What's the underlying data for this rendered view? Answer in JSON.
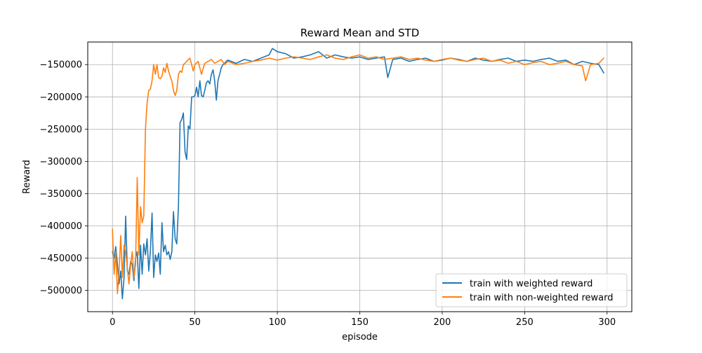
{
  "chart_data": {
    "type": "line",
    "title": "Reward Mean and STD",
    "xlabel": "episode",
    "ylabel": "Reward",
    "xlim": [
      -15,
      315
    ],
    "ylim": [
      -533000,
      -115000
    ],
    "xticks": [
      0,
      50,
      100,
      150,
      200,
      250,
      300
    ],
    "xtick_labels": [
      "0",
      "50",
      "100",
      "150",
      "200",
      "250",
      "300"
    ],
    "yticks": [
      -500000,
      -450000,
      -400000,
      -350000,
      -300000,
      -250000,
      -200000,
      -150000
    ],
    "ytick_labels": [
      "−500000",
      "−450000",
      "−400000",
      "−350000",
      "−300000",
      "−250000",
      "−200000",
      "−150000"
    ],
    "grid": true,
    "legend_position": "lower-right",
    "series": [
      {
        "name": "train with weighted reward",
        "color": "#1f77b4",
        "x": [
          0,
          1,
          2,
          3,
          4,
          5,
          6,
          7,
          8,
          9,
          10,
          11,
          12,
          13,
          14,
          15,
          16,
          17,
          18,
          19,
          20,
          21,
          22,
          23,
          24,
          25,
          26,
          27,
          28,
          29,
          30,
          31,
          32,
          33,
          34,
          35,
          36,
          37,
          38,
          39,
          40,
          41,
          42,
          43,
          44,
          45,
          46,
          47,
          48,
          49,
          50,
          51,
          52,
          53,
          54,
          55,
          56,
          57,
          58,
          59,
          60,
          61,
          62,
          63,
          64,
          65,
          66,
          67,
          68,
          69,
          70,
          75,
          80,
          85,
          90,
          95,
          97,
          100,
          105,
          110,
          115,
          120,
          125,
          130,
          135,
          140,
          145,
          150,
          155,
          160,
          165,
          167,
          170,
          175,
          180,
          185,
          190,
          195,
          200,
          205,
          210,
          215,
          220,
          225,
          230,
          235,
          240,
          245,
          250,
          255,
          260,
          265,
          270,
          275,
          280,
          285,
          290,
          295,
          298
        ],
        "values": [
          -440000,
          -450000,
          -432000,
          -460000,
          -490000,
          -470000,
          -513000,
          -480000,
          -385000,
          -470000,
          -475000,
          -455000,
          -460000,
          -485000,
          -450000,
          -440000,
          -497000,
          -430000,
          -475000,
          -428000,
          -445000,
          -420000,
          -470000,
          -440000,
          -380000,
          -480000,
          -445000,
          -455000,
          -442000,
          -475000,
          -395000,
          -440000,
          -430000,
          -445000,
          -440000,
          -452000,
          -440000,
          -378000,
          -420000,
          -428000,
          -370000,
          -240000,
          -235000,
          -225000,
          -285000,
          -297000,
          -245000,
          -250000,
          -200000,
          -200000,
          -198000,
          -185000,
          -200000,
          -175000,
          -198000,
          -200000,
          -190000,
          -178000,
          -175000,
          -180000,
          -165000,
          -158000,
          -175000,
          -205000,
          -175000,
          -165000,
          -155000,
          -150000,
          -148000,
          -145000,
          -143000,
          -148000,
          -142000,
          -145000,
          -140000,
          -135000,
          -125000,
          -130000,
          -133000,
          -140000,
          -138000,
          -135000,
          -130000,
          -140000,
          -135000,
          -138000,
          -140000,
          -138000,
          -142000,
          -140000,
          -138000,
          -170000,
          -142000,
          -140000,
          -145000,
          -142000,
          -140000,
          -145000,
          -143000,
          -140000,
          -142000,
          -145000,
          -140000,
          -143000,
          -145000,
          -142000,
          -140000,
          -145000,
          -143000,
          -145000,
          -142000,
          -140000,
          -145000,
          -143000,
          -150000,
          -145000,
          -148000,
          -150000,
          -163000
        ]
      },
      {
        "name": "train with non-weighted reward",
        "color": "#ff7f0e",
        "x": [
          0,
          1,
          2,
          3,
          4,
          5,
          6,
          7,
          8,
          9,
          10,
          11,
          12,
          13,
          14,
          15,
          16,
          17,
          18,
          19,
          20,
          21,
          22,
          23,
          24,
          25,
          26,
          27,
          28,
          29,
          30,
          31,
          32,
          33,
          34,
          35,
          36,
          37,
          38,
          39,
          40,
          41,
          42,
          43,
          44,
          45,
          46,
          47,
          48,
          49,
          50,
          52,
          54,
          56,
          58,
          60,
          62,
          64,
          66,
          68,
          70,
          75,
          80,
          85,
          90,
          95,
          100,
          105,
          110,
          115,
          120,
          125,
          130,
          135,
          140,
          145,
          150,
          155,
          160,
          165,
          170,
          175,
          180,
          185,
          190,
          195,
          200,
          205,
          210,
          215,
          220,
          225,
          230,
          235,
          240,
          245,
          250,
          255,
          260,
          265,
          270,
          275,
          280,
          285,
          287,
          290,
          295,
          298
        ],
        "values": [
          -405000,
          -475000,
          -440000,
          -505000,
          -470000,
          -415000,
          -480000,
          -430000,
          -440000,
          -465000,
          -490000,
          -460000,
          -440000,
          -480000,
          -460000,
          -325000,
          -445000,
          -370000,
          -395000,
          -385000,
          -250000,
          -210000,
          -190000,
          -188000,
          -175000,
          -150000,
          -165000,
          -150000,
          -170000,
          -172000,
          -168000,
          -155000,
          -162000,
          -148000,
          -160000,
          -168000,
          -175000,
          -190000,
          -198000,
          -190000,
          -165000,
          -160000,
          -162000,
          -150000,
          -148000,
          -145000,
          -142000,
          -140000,
          -150000,
          -160000,
          -150000,
          -145000,
          -165000,
          -148000,
          -145000,
          -142000,
          -148000,
          -145000,
          -142000,
          -150000,
          -145000,
          -150000,
          -148000,
          -145000,
          -143000,
          -140000,
          -143000,
          -140000,
          -138000,
          -140000,
          -142000,
          -138000,
          -135000,
          -140000,
          -142000,
          -138000,
          -135000,
          -140000,
          -138000,
          -142000,
          -140000,
          -138000,
          -142000,
          -140000,
          -143000,
          -145000,
          -142000,
          -140000,
          -143000,
          -145000,
          -142000,
          -140000,
          -145000,
          -143000,
          -148000,
          -145000,
          -150000,
          -147000,
          -145000,
          -150000,
          -148000,
          -145000,
          -150000,
          -152000,
          -175000,
          -150000,
          -148000,
          -140000
        ]
      }
    ]
  }
}
